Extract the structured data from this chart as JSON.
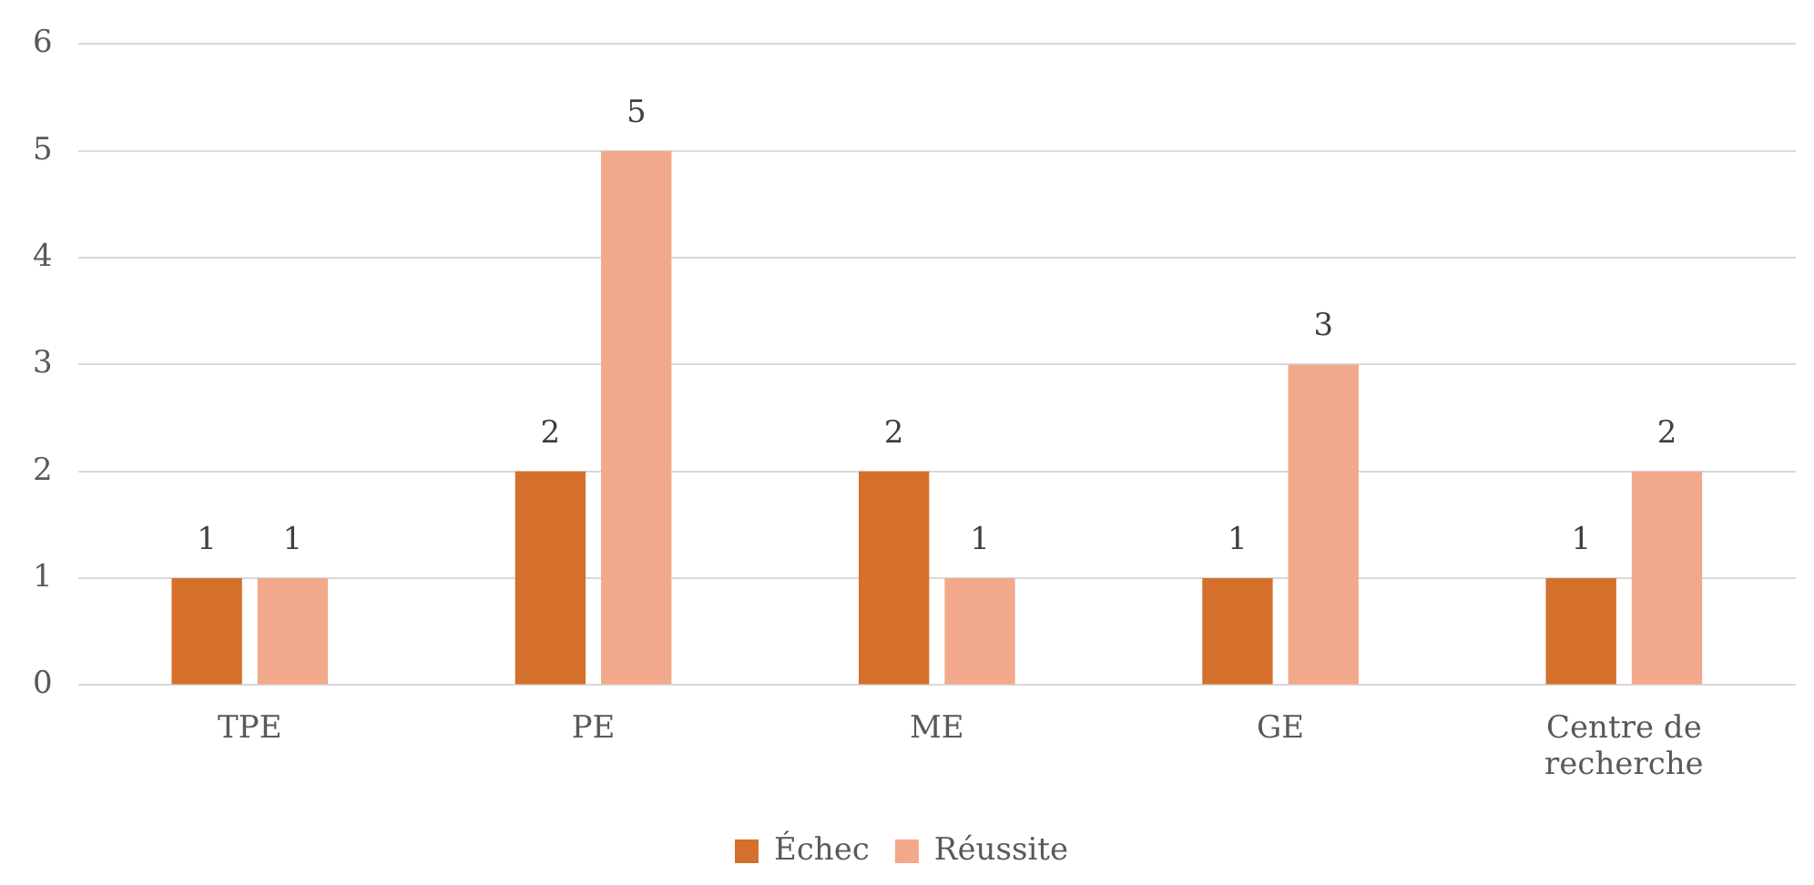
{
  "chart_data": {
    "type": "bar",
    "categories": [
      "TPE",
      "PE",
      "ME",
      "GE",
      "Centre de recherche"
    ],
    "series": [
      {
        "name": "Échec",
        "color": "#d4702b",
        "values": [
          1,
          2,
          2,
          1,
          1
        ]
      },
      {
        "name": "Réussite",
        "color": "#f2a98b",
        "values": [
          1,
          5,
          1,
          3,
          2
        ]
      }
    ],
    "ylim": [
      0,
      6
    ],
    "yticks": [
      0,
      1,
      2,
      3,
      4,
      5,
      6
    ],
    "grid": "y",
    "legend": "bottom",
    "data_labels": true
  }
}
